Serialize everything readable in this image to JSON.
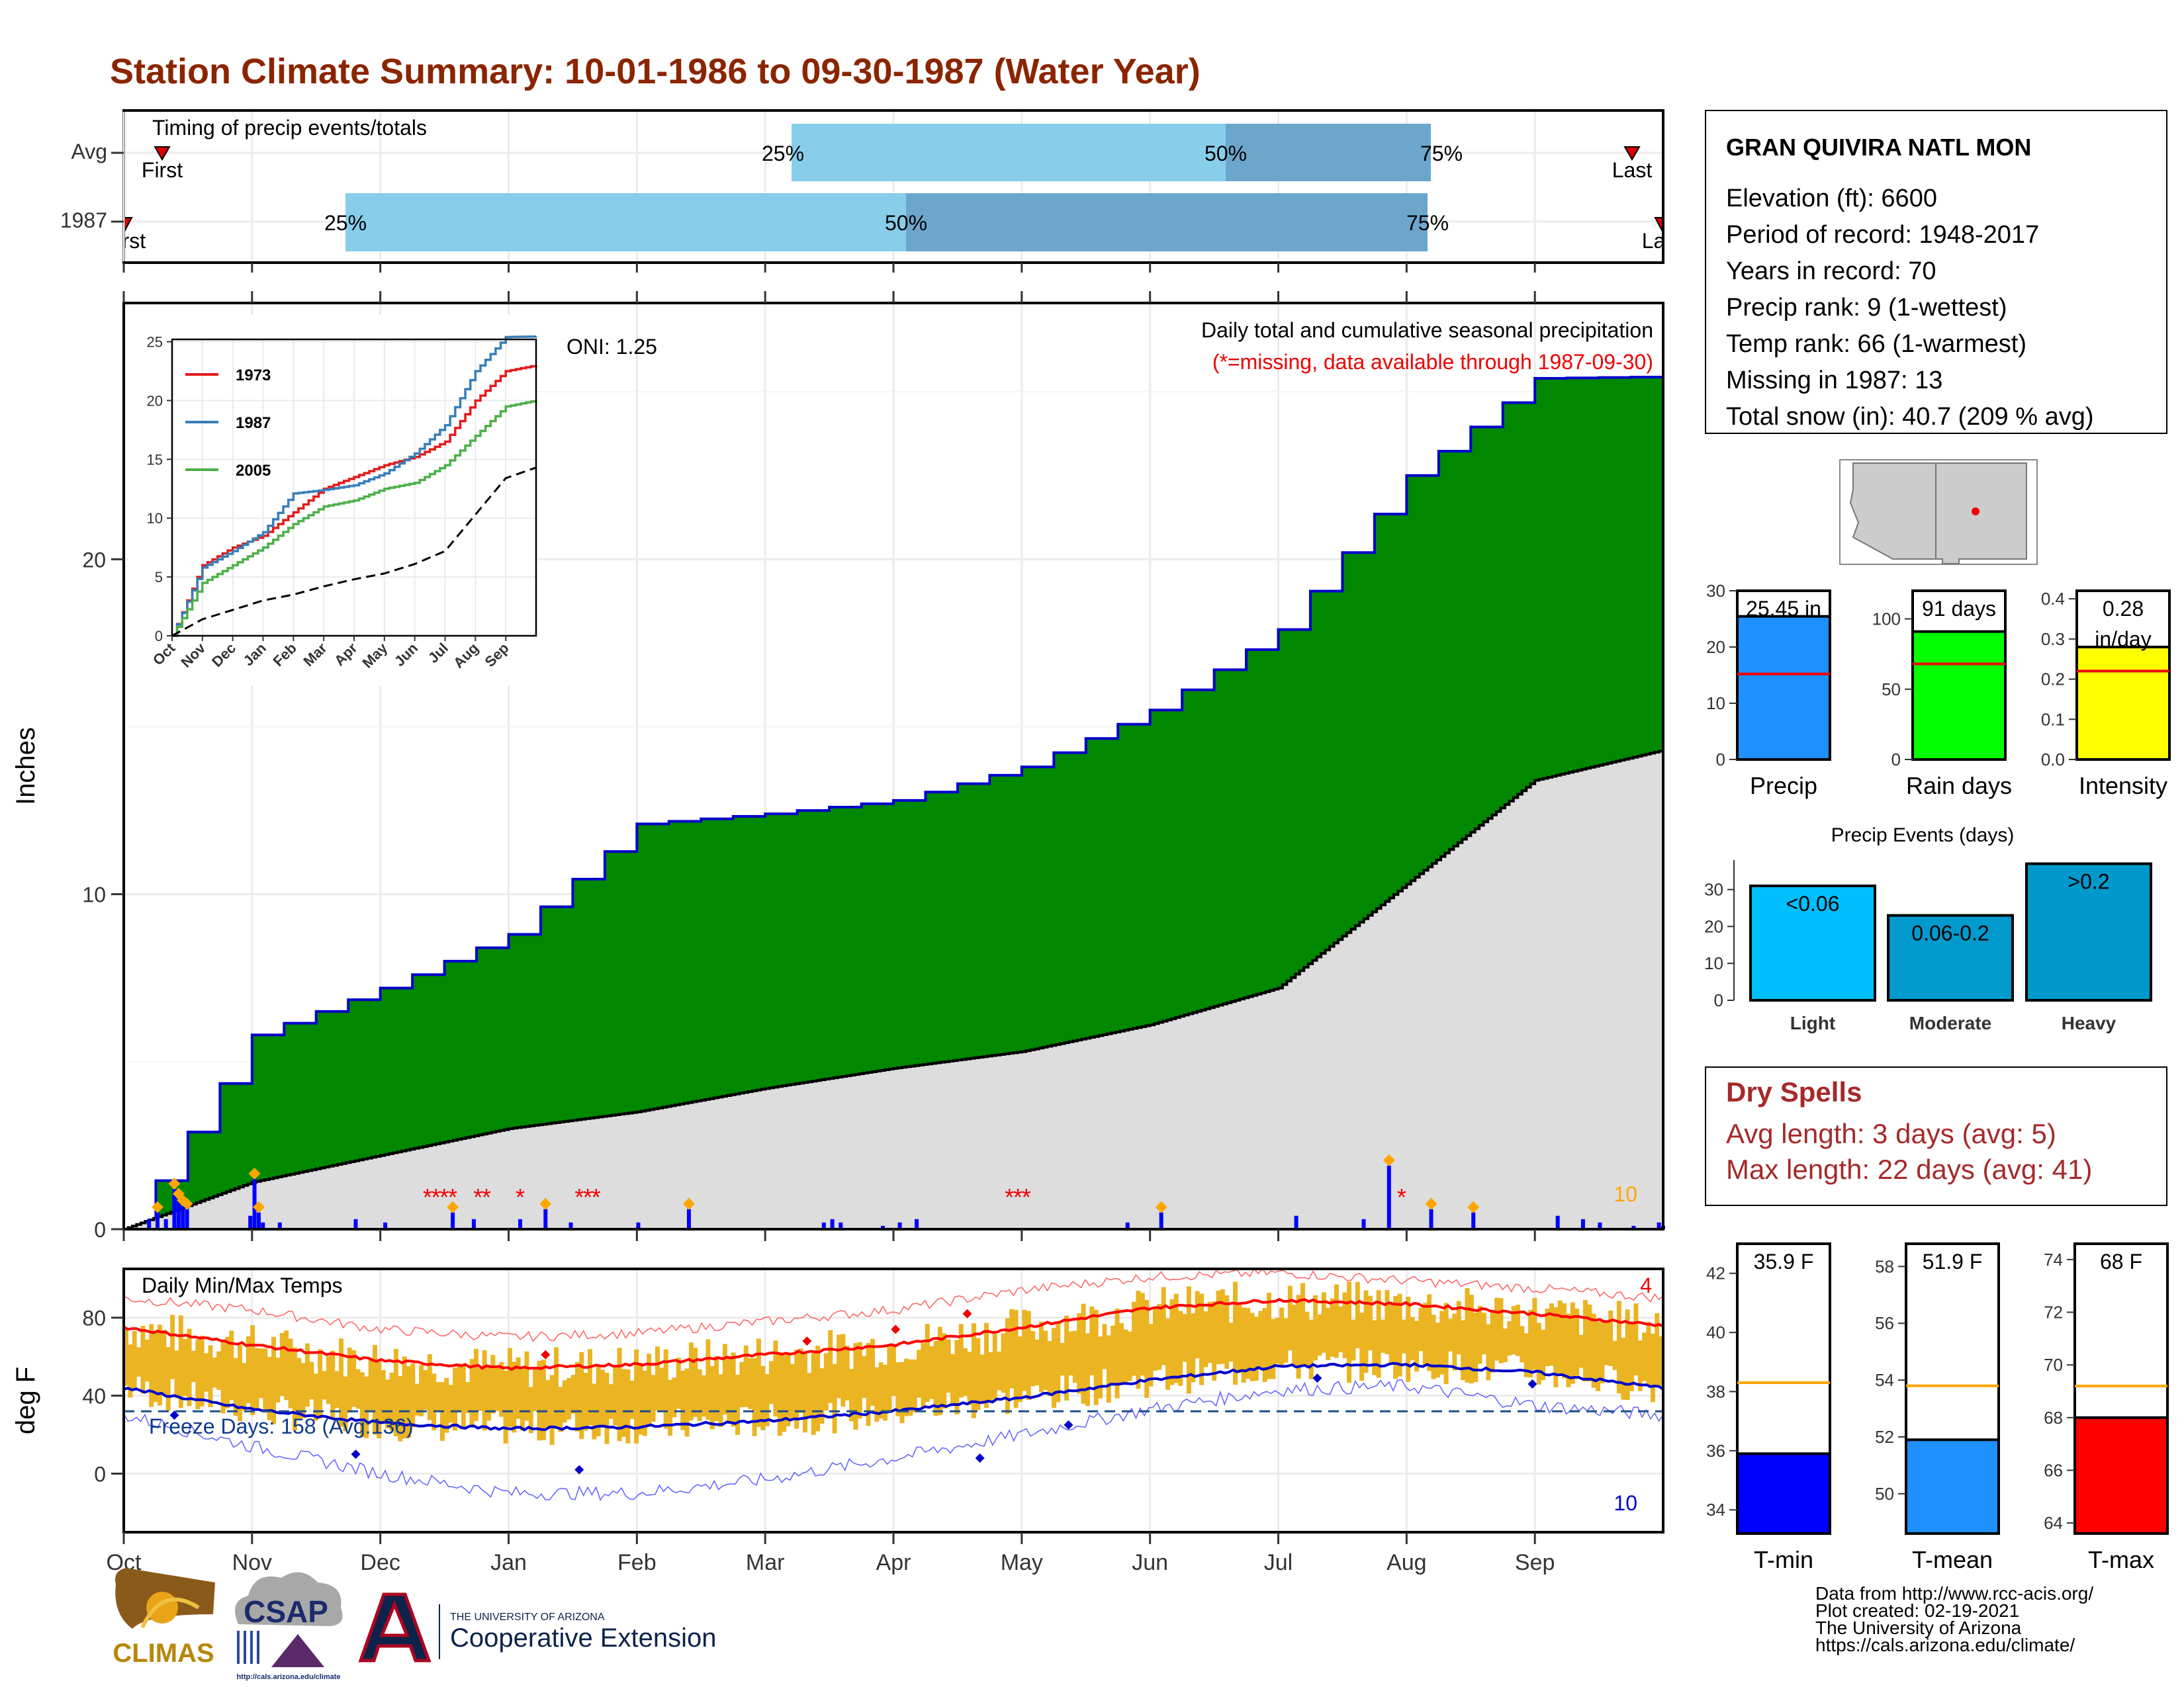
{
  "title": "Station Climate Summary: 10-01-1986 to 09-30-1987 (Water Year)",
  "months": [
    "Oct",
    "Nov",
    "Dec",
    "Jan",
    "Feb",
    "Mar",
    "Apr",
    "May",
    "Jun",
    "Jul",
    "Aug",
    "Sep"
  ],
  "timing": {
    "heading": "Timing of precip events/totals",
    "rows": [
      {
        "label": "Avg",
        "first_label": "First",
        "last_label": "Last",
        "pct_labels": [
          "25%",
          "50%",
          "75%"
        ]
      },
      {
        "label": "1987",
        "first_label": "First",
        "last_label": "Last",
        "pct_labels": [
          "25%",
          "50%",
          "75%"
        ]
      }
    ]
  },
  "station": {
    "name": "GRAN QUIVIRA NATL MON",
    "lines": [
      "Elevation (ft): 6600",
      "Period of record: 1948-2017",
      "Years in record: 70",
      "Precip rank: 9 (1-wettest)",
      "Temp rank: 66 (1-warmest)",
      "Missing in 1987: 13",
      "Total snow (in): 40.7 (209 % avg)"
    ]
  },
  "precip_panel": {
    "ylabel": "Inches",
    "y_ticks": [
      "0",
      "10",
      "20"
    ],
    "oni": "ONI: 1.25",
    "header": "Daily total and cumulative seasonal precipitation",
    "note": "(*=missing, data available through 1987-09-30)",
    "corner_count": "10"
  },
  "inset": {
    "y_ticks": [
      "0",
      "5",
      "10",
      "15",
      "20",
      "25"
    ],
    "x_ticks": [
      "Oct",
      "Nov",
      "Dec",
      "Jan",
      "Feb",
      "Mar",
      "Apr",
      "May",
      "Jun",
      "Jul",
      "Aug",
      "Sep"
    ],
    "legend": [
      {
        "name": "1973",
        "color": "#e31a1c"
      },
      {
        "name": "1987",
        "color": "#377eb8"
      },
      {
        "name": "2005",
        "color": "#4daf4a"
      }
    ]
  },
  "temp_panel": {
    "ylabel": "deg F",
    "title": "Daily Min/Max Temps",
    "freeze": "Freeze Days: 158 (Avg:136)",
    "hi_count": "4",
    "lo_count": "10",
    "y_ticks": [
      "0",
      "40",
      "80"
    ]
  },
  "bar_stats": [
    {
      "label": "Precip",
      "value_text": "25.45 in",
      "y_ticks": [
        "0",
        "10",
        "20",
        "30"
      ],
      "color": "#1e90ff"
    },
    {
      "label": "Rain days",
      "value_text": "91 days",
      "y_ticks": [
        "0",
        "50",
        "100"
      ],
      "color": "#00ff00"
    },
    {
      "label": "Intensity",
      "value_text": "0.28 in/day",
      "value_line1": "0.28",
      "value_line2": "in/day",
      "y_ticks": [
        "0.0",
        "0.1",
        "0.2",
        "0.3",
        "0.4"
      ],
      "color": "#ffff00"
    }
  ],
  "events": {
    "title": "Precip Events (days)",
    "y_ticks": [
      "0",
      "10",
      "20",
      "30"
    ],
    "bars": [
      {
        "label": "Light",
        "value_label": "<0.06"
      },
      {
        "label": "Moderate",
        "value_label": "0.06-0.2"
      },
      {
        "label": "Heavy",
        "value_label": ">0.2"
      }
    ]
  },
  "dry_spells": {
    "title": "Dry Spells",
    "avg": "Avg length: 3 days (avg: 5)",
    "max": "Max length: 22 days (avg: 41)"
  },
  "temp_stats": [
    {
      "label": "T-min",
      "value_text": "35.9 F",
      "y_ticks": [
        "34",
        "36",
        "38",
        "40",
        "42"
      ],
      "color": "#0000ff"
    },
    {
      "label": "T-mean",
      "value_text": "51.9 F",
      "y_ticks": [
        "50",
        "52",
        "54",
        "56",
        "58"
      ],
      "color": "#1e90ff"
    },
    {
      "label": "T-max",
      "value_text": "68 F",
      "y_ticks": [
        "64",
        "66",
        "68",
        "70",
        "72",
        "74"
      ],
      "color": "#ff0000"
    }
  ],
  "credits": [
    "Data from http://www.rcc-acis.org/",
    "Plot created: 02-19-2021",
    "The University of Arizona",
    "https://cals.arizona.edu/climate/"
  ],
  "logos": {
    "climas": "CLIMAS",
    "csap": "CSAP",
    "csap_url": "http://cals.arizona.edu/climate",
    "ua_top": "THE UNIVERSITY OF ARIZONA",
    "ua_bottom": "Cooperative Extension"
  },
  "chart_data": [
    {
      "type": "line",
      "title": "Daily total and cumulative seasonal precipitation",
      "ylabel": "Inches",
      "x_unit": "month",
      "x": [
        "Oct",
        "Nov",
        "Dec",
        "Jan",
        "Feb",
        "Mar",
        "Apr",
        "May",
        "Jun",
        "Jul",
        "Aug",
        "Sep",
        "Oct"
      ],
      "ylim": [
        0,
        26
      ],
      "series": [
        {
          "name": "1987 cumulative",
          "color": "#008800",
          "values": [
            0.0,
            5.8,
            7.2,
            8.8,
            12.1,
            12.4,
            12.8,
            13.8,
            15.5,
            17.9,
            22.5,
            25.4,
            25.45
          ]
        },
        {
          "name": "Average cumulative",
          "color": "#dddddd",
          "values": [
            0.0,
            1.4,
            2.2,
            3.0,
            3.5,
            4.2,
            4.8,
            5.3,
            6.1,
            7.2,
            10.3,
            13.4,
            14.3
          ]
        }
      ]
    },
    {
      "type": "bar",
      "title": "Daily precipitation",
      "x_unit": "day of water year",
      "x": [
        6,
        8,
        10,
        12,
        13,
        14,
        15,
        30,
        31,
        32,
        33,
        37,
        55,
        62,
        78,
        83,
        94,
        100,
        106,
        122,
        134,
        166,
        168,
        170,
        180,
        184,
        188,
        238,
        246,
        278,
        294,
        300,
        310,
        320,
        340,
        346,
        350,
        358,
        364,
        365
      ],
      "values": [
        0.3,
        0.5,
        0.3,
        1.2,
        0.9,
        0.7,
        0.6,
        0.4,
        1.5,
        0.5,
        0.2,
        0.2,
        0.3,
        0.2,
        0.5,
        0.3,
        0.3,
        0.6,
        0.2,
        0.2,
        0.6,
        0.2,
        0.3,
        0.2,
        0.1,
        0.2,
        0.3,
        0.2,
        0.5,
        0.4,
        0.3,
        1.9,
        0.6,
        0.5,
        0.4,
        0.3,
        0.2,
        0.1,
        0.2,
        0.1
      ]
    },
    {
      "type": "line",
      "title": "Inset cumulative precipitation",
      "x": [
        "Oct",
        "Nov",
        "Dec",
        "Jan",
        "Feb",
        "Mar",
        "Apr",
        "May",
        "Jun",
        "Jul",
        "Aug",
        "Sep",
        "Oct"
      ],
      "ylim": [
        0,
        25
      ],
      "series": [
        {
          "name": "1973",
          "values": [
            0,
            6,
            7.5,
            8.5,
            10.5,
            12.5,
            13.5,
            14.5,
            15.2,
            16.5,
            20,
            22.5,
            23
          ]
        },
        {
          "name": "1987",
          "values": [
            0,
            5.8,
            7.2,
            8.8,
            12.1,
            12.4,
            12.8,
            13.8,
            15.5,
            17.9,
            22.5,
            25.4,
            25.45
          ]
        },
        {
          "name": "2005",
          "values": [
            0,
            4.5,
            6,
            7.5,
            9.5,
            11,
            11.5,
            12.5,
            13,
            14.5,
            17,
            19.5,
            20
          ]
        },
        {
          "name": "Average",
          "values": [
            0,
            1.4,
            2.2,
            3,
            3.5,
            4.2,
            4.8,
            5.3,
            6.1,
            7.2,
            10.3,
            13.4,
            14.3
          ]
        }
      ]
    },
    {
      "type": "line",
      "title": "Daily Min/Max Temps",
      "ylabel": "deg F",
      "x": [
        "Oct",
        "Nov",
        "Dec",
        "Jan",
        "Feb",
        "Mar",
        "Apr",
        "May",
        "Jun",
        "Jul",
        "Aug",
        "Sep",
        "Oct"
      ],
      "ylim": [
        -30,
        105
      ],
      "series": [
        {
          "name": "Avg max",
          "values": [
            75,
            66,
            58,
            54,
            56,
            61,
            66,
            75,
            85,
            89,
            87,
            82,
            76
          ]
        },
        {
          "name": "Avg min",
          "values": [
            44,
            33,
            26,
            23,
            24,
            27,
            32,
            39,
            48,
            55,
            56,
            52,
            44
          ]
        },
        {
          "name": "Record high",
          "values": [
            90,
            84,
            74,
            70,
            72,
            78,
            84,
            94,
            101,
            103,
            99,
            95,
            90
          ]
        },
        {
          "name": "Record low",
          "values": [
            30,
            14,
            0,
            -10,
            -10,
            -3,
            8,
            20,
            33,
            43,
            45,
            35,
            30
          ]
        },
        {
          "name": "Freeze threshold",
          "values": [
            32,
            32,
            32,
            32,
            32,
            32,
            32,
            32,
            32,
            32,
            32,
            32,
            32
          ]
        }
      ]
    },
    {
      "type": "bar",
      "title": "Season totals",
      "categories": [
        "Precip",
        "Rain days",
        "Intensity"
      ],
      "series": [
        {
          "name": "1987",
          "values": [
            25.45,
            91,
            0.28
          ]
        },
        {
          "name": "Average",
          "values": [
            15.2,
            68,
            0.22
          ]
        }
      ],
      "ylims": [
        [
          0,
          30
        ],
        [
          0,
          120
        ],
        [
          0,
          0.42
        ]
      ]
    },
    {
      "type": "bar",
      "title": "Precip Events (days)",
      "categories": [
        "Light",
        "Moderate",
        "Heavy"
      ],
      "values": [
        31,
        23,
        37
      ],
      "ylim": [
        0,
        38
      ]
    },
    {
      "type": "bar",
      "title": "Seasonal mean temperatures",
      "categories": [
        "T-min",
        "T-mean",
        "T-max"
      ],
      "series": [
        {
          "name": "1987",
          "values": [
            35.9,
            51.9,
            68
          ]
        },
        {
          "name": "Average",
          "values": [
            38.3,
            53.8,
            69.2
          ]
        }
      ],
      "ylims": [
        [
          33.2,
          43
        ],
        [
          48.6,
          58.8
        ],
        [
          63.6,
          74.6
        ]
      ]
    }
  ]
}
